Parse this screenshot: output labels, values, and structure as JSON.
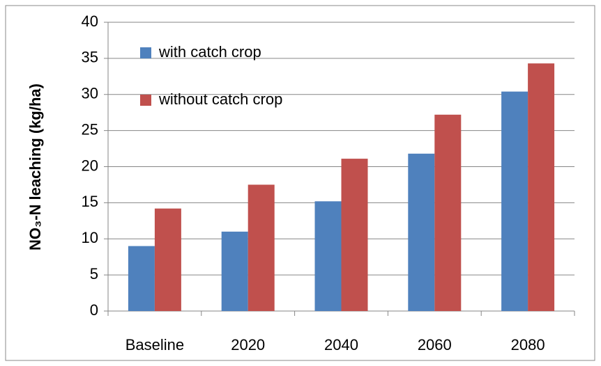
{
  "chart_data": {
    "type": "bar",
    "y_label": "NO₃-N leaching (kg/ha)",
    "categories": [
      "Baseline",
      "2020",
      "2040",
      "2060",
      "2080"
    ],
    "series": [
      {
        "name": "with catch crop",
        "color": "#4f81bd",
        "values": [
          9,
          11,
          15.2,
          21.8,
          30.4
        ]
      },
      {
        "name": "without catch crop",
        "color": "#c0504d",
        "values": [
          14.2,
          17.5,
          21.1,
          27.2,
          34.3
        ]
      }
    ],
    "ylim": [
      0,
      40
    ],
    "yticks": [
      0,
      5,
      10,
      15,
      20,
      25,
      30,
      35,
      40
    ],
    "grid": true,
    "legend": "upper-left"
  }
}
